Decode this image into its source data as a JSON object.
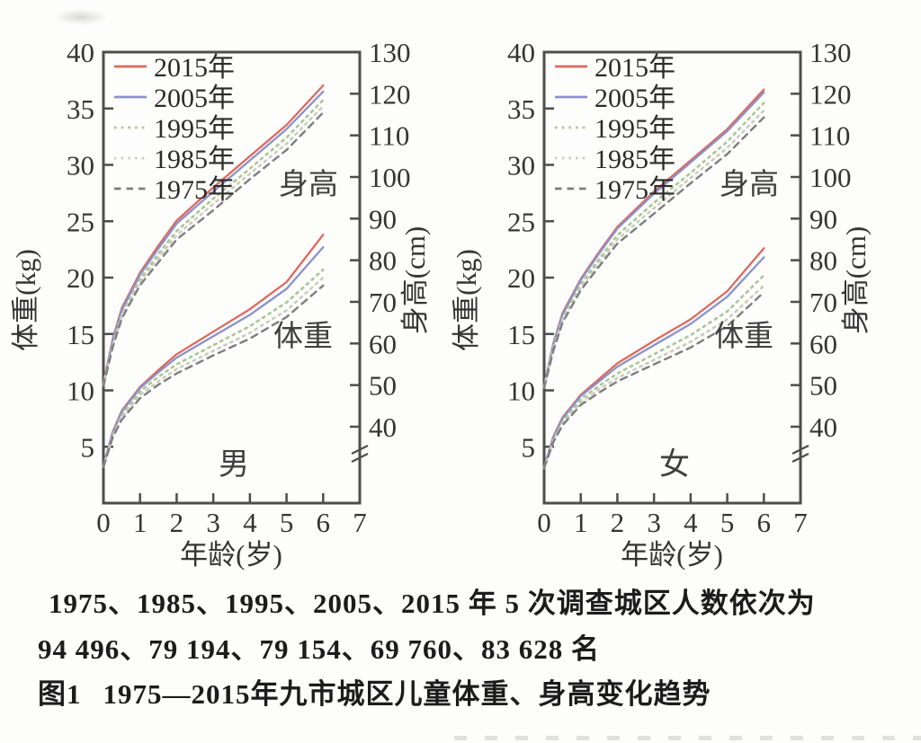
{
  "figure_caption": {
    "line1": "1975、1985、1995、2005、2015 年 5 次调查城区人数依次为",
    "line2": "94 496、79 194、79 154、69 760、83 628 名",
    "fig_label": "图1",
    "fig_title": "1975—2015年九市城区儿童体重、身高变化趋势"
  },
  "colors": {
    "axis": "#4d4d4d",
    "tick_text": "#343434",
    "inner_label_text": "#3f3f3f",
    "legend_text": "#2b2b2b"
  },
  "styles": {
    "2015年": {
      "color": "#dd695d",
      "dash": "",
      "width": 2.3
    },
    "2005年": {
      "color": "#8a92cc",
      "dash": "",
      "width": 2.3
    },
    "1995年": {
      "color": "#a9c795",
      "dash": "2.5 5.2",
      "width": 2.6
    },
    "1985年": {
      "color": "#cbcbbf",
      "dash": "2.5 5.2",
      "width": 2.6
    },
    "1975年": {
      "color": "#7e7e7e",
      "dash": "7.5 6",
      "width": 2.4
    }
  },
  "axes": {
    "xlabel": "年龄(岁)",
    "ylabel_left": "体重(kg)",
    "ylabel_right": "身高(cm)",
    "xlim": [
      0,
      7
    ],
    "left_ylim": [
      0,
      40
    ],
    "right_ylim_shown": [
      40,
      130
    ],
    "x_ticks": [
      0,
      1,
      2,
      3,
      4,
      5,
      6,
      7
    ],
    "x_origin_label": "0",
    "left_ticks": [
      5,
      10,
      15,
      20,
      25,
      30,
      35,
      40
    ],
    "right_ticks": [
      40,
      50,
      60,
      70,
      80,
      90,
      100,
      110,
      120,
      130
    ],
    "right_axis_break": true,
    "grid": false,
    "legend_position": "upper-left-inside"
  },
  "chart_data": [
    {
      "type": "line",
      "group": "男",
      "inner_labels": {
        "height": "身高",
        "weight": "体重"
      },
      "x": [
        0,
        0.25,
        0.5,
        1,
        1.5,
        2,
        3,
        4,
        5,
        6
      ],
      "series": [
        {
          "name": "2015年",
          "height": [
            50.4,
            61.0,
            68.5,
            77.0,
            83.5,
            89.5,
            97.5,
            105.0,
            112.5,
            122.0
          ],
          "weight": [
            3.3,
            6.3,
            8.2,
            10.3,
            11.8,
            13.2,
            15.2,
            17.2,
            19.6,
            23.8
          ]
        },
        {
          "name": "2005年",
          "height": [
            50.2,
            60.6,
            68.0,
            76.5,
            82.8,
            88.8,
            96.5,
            104.0,
            111.5,
            120.5
          ],
          "weight": [
            3.3,
            6.2,
            8.1,
            10.2,
            11.6,
            12.9,
            14.8,
            16.7,
            19.0,
            22.7
          ]
        },
        {
          "name": "1995年",
          "height": [
            50.0,
            59.8,
            67.0,
            75.5,
            81.5,
            87.0,
            94.8,
            102.0,
            109.5,
            118.5
          ],
          "weight": [
            3.2,
            6.0,
            7.8,
            9.9,
            11.2,
            12.3,
            14.0,
            15.7,
            17.8,
            20.7
          ]
        },
        {
          "name": "1985年",
          "height": [
            50.0,
            59.4,
            66.5,
            74.8,
            80.5,
            86.0,
            93.5,
            100.8,
            108.0,
            117.0
          ],
          "weight": [
            3.2,
            5.9,
            7.6,
            9.6,
            10.8,
            11.9,
            13.5,
            15.1,
            17.1,
            20.0
          ]
        },
        {
          "name": "1975年",
          "height": [
            49.8,
            59.0,
            66.0,
            74.0,
            79.5,
            85.0,
            92.0,
            99.5,
            106.5,
            115.5
          ],
          "weight": [
            3.2,
            5.8,
            7.4,
            9.3,
            10.5,
            11.5,
            13.1,
            14.6,
            16.5,
            19.3
          ]
        }
      ]
    },
    {
      "type": "line",
      "group": "女",
      "inner_labels": {
        "height": "身高",
        "weight": "体重"
      },
      "x": [
        0,
        0.25,
        0.5,
        1,
        1.5,
        2,
        3,
        4,
        5,
        6
      ],
      "series": [
        {
          "name": "2015年",
          "height": [
            49.8,
            60.0,
            67.3,
            75.5,
            82.0,
            88.0,
            96.5,
            104.0,
            111.5,
            121.0
          ],
          "weight": [
            3.2,
            5.9,
            7.6,
            9.6,
            11.0,
            12.4,
            14.4,
            16.3,
            18.8,
            22.6
          ]
        },
        {
          "name": "2005年",
          "height": [
            49.7,
            59.7,
            66.9,
            75.2,
            81.6,
            87.6,
            96.0,
            103.5,
            111.0,
            120.3
          ],
          "weight": [
            3.2,
            5.8,
            7.5,
            9.5,
            10.8,
            12.1,
            14.0,
            15.9,
            18.3,
            21.8
          ]
        },
        {
          "name": "1995年",
          "height": [
            49.5,
            59.0,
            66.0,
            74.2,
            80.3,
            86.0,
            93.8,
            101.0,
            108.5,
            117.8
          ],
          "weight": [
            3.1,
            5.6,
            7.2,
            9.2,
            10.4,
            11.5,
            13.2,
            14.9,
            17.0,
            20.2
          ]
        },
        {
          "name": "1985年",
          "height": [
            49.5,
            58.6,
            65.5,
            73.5,
            79.4,
            85.0,
            92.5,
            99.8,
            107.0,
            116.0
          ],
          "weight": [
            3.1,
            5.5,
            7.0,
            8.9,
            10.1,
            11.1,
            12.7,
            14.3,
            16.3,
            19.3
          ]
        },
        {
          "name": "1975年",
          "height": [
            49.3,
            58.2,
            65.0,
            72.8,
            78.5,
            84.0,
            91.2,
            98.5,
            105.5,
            114.3
          ],
          "weight": [
            3.1,
            5.4,
            6.9,
            8.7,
            9.8,
            10.8,
            12.3,
            13.8,
            15.7,
            18.7
          ]
        }
      ]
    }
  ]
}
